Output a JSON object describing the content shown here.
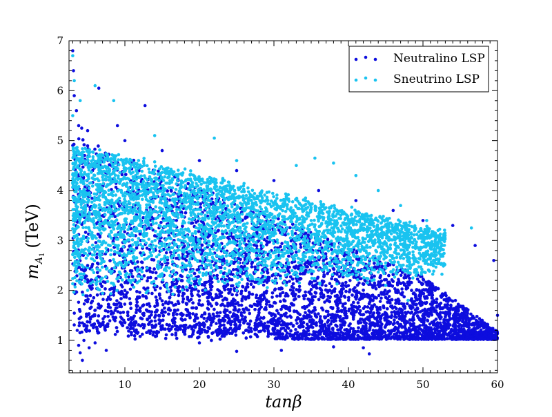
{
  "chart_data": {
    "type": "scatter",
    "xlabel": "tanβ",
    "ylabel_main": "m",
    "ylabel_sub": "A",
    "ylabel_subsub": "1",
    "ylabel_unit": "(TeV)",
    "xlim": [
      2.5,
      60
    ],
    "ylim": [
      0.35,
      7
    ],
    "xticks": [
      10,
      20,
      30,
      40,
      50,
      60
    ],
    "yticks": [
      1,
      2,
      3,
      4,
      5,
      6,
      7
    ],
    "grid": false,
    "legend_position": "top-right",
    "series": [
      {
        "name": "Neutralino LSP",
        "color": "#0d0dde",
        "points": [
          [
            3.0,
            6.8
          ],
          [
            3.1,
            6.4
          ],
          [
            3.2,
            5.9
          ],
          [
            3.5,
            5.6
          ],
          [
            3.8,
            5.3
          ],
          [
            4.2,
            5.25
          ],
          [
            5.0,
            5.2
          ],
          [
            6.5,
            6.05
          ],
          [
            9.0,
            5.3
          ],
          [
            12.7,
            5.7
          ],
          [
            3.6,
            1.2
          ],
          [
            3.8,
            0.9
          ],
          [
            4.0,
            0.75
          ],
          [
            4.3,
            0.6
          ],
          [
            4.5,
            1.0
          ],
          [
            5.2,
            0.85
          ],
          [
            6.0,
            0.95
          ],
          [
            7.5,
            0.8
          ],
          [
            20.0,
            0.95
          ],
          [
            25.0,
            0.78
          ],
          [
            31.0,
            0.8
          ],
          [
            38.0,
            0.87
          ],
          [
            42.0,
            0.85
          ],
          [
            42.8,
            0.73
          ],
          [
            5,
            2.5
          ],
          [
            10,
            2.0
          ],
          [
            15,
            1.6
          ],
          [
            20,
            1.8
          ],
          [
            25,
            1.5
          ],
          [
            30,
            1.4
          ],
          [
            35,
            1.3
          ],
          [
            40,
            1.2
          ],
          [
            45,
            1.1
          ],
          [
            50,
            1.2
          ],
          [
            55,
            1.3
          ],
          [
            60,
            1.5
          ],
          [
            59.5,
            2.6
          ],
          [
            57,
            2.9
          ],
          [
            54,
            3.3
          ],
          [
            50,
            3.4
          ],
          [
            46,
            3.6
          ],
          [
            41,
            3.8
          ],
          [
            36,
            4.0
          ],
          [
            30,
            4.2
          ],
          [
            25,
            4.4
          ],
          [
            20,
            4.6
          ],
          [
            15,
            4.8
          ],
          [
            10,
            5.0
          ]
        ]
      },
      {
        "name": "Sneutrino LSP",
        "color": "#19c3f0",
        "points": [
          [
            3.0,
            6.7
          ],
          [
            3.2,
            6.2
          ],
          [
            3.0,
            5.5
          ],
          [
            4.0,
            5.8
          ],
          [
            6.0,
            6.1
          ],
          [
            8.5,
            5.8
          ],
          [
            14.0,
            5.1
          ],
          [
            22.0,
            5.05
          ],
          [
            25.0,
            4.6
          ],
          [
            33.0,
            4.5
          ],
          [
            35.5,
            4.65
          ],
          [
            38.0,
            4.55
          ],
          [
            41.0,
            4.3
          ],
          [
            44.0,
            4.0
          ],
          [
            47.0,
            3.7
          ],
          [
            50.5,
            3.4
          ],
          [
            56.5,
            3.25
          ],
          [
            7,
            4.0
          ],
          [
            10,
            3.6
          ],
          [
            12,
            3.5
          ],
          [
            15,
            3.2
          ],
          [
            20,
            3.0
          ],
          [
            25,
            2.8
          ],
          [
            30,
            2.6
          ],
          [
            35,
            2.4
          ],
          [
            40,
            2.3
          ],
          [
            45,
            2.1
          ],
          [
            48,
            1.8
          ],
          [
            10,
            2.5
          ],
          [
            15,
            2.3
          ],
          [
            20,
            2.2
          ],
          [
            25,
            2.0
          ]
        ]
      }
    ]
  }
}
